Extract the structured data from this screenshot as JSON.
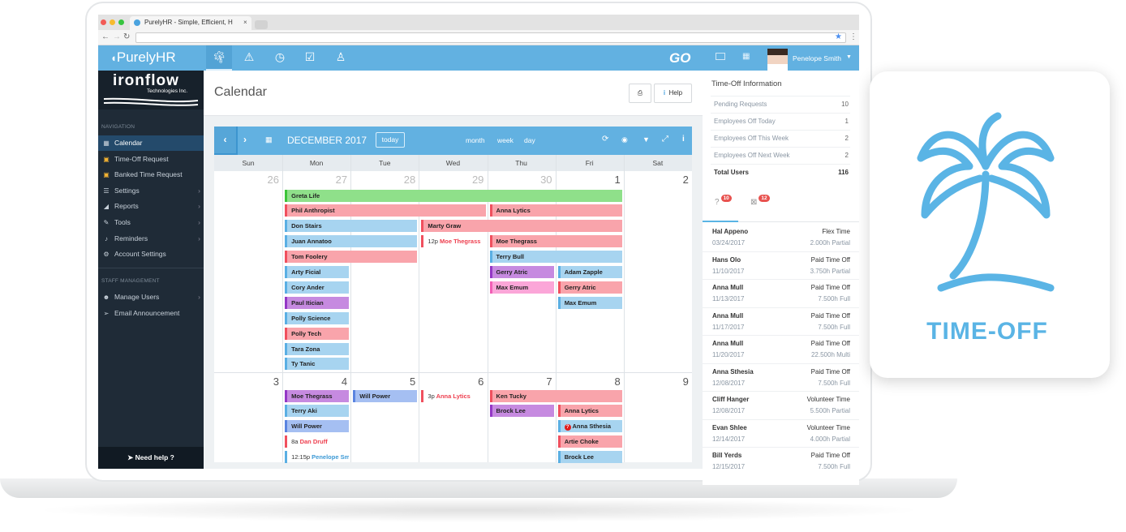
{
  "browser": {
    "tab_title": "PurelyHR - Simple, Efficient, H",
    "tab_close": "×",
    "url": ""
  },
  "app": {
    "brand": "PurelyHR",
    "go_logo": "GO",
    "user_name": "Penelope Smith",
    "colors": {
      "header": "#62b1e1",
      "sidebar": "#1f2b37",
      "accent": "#5ab4e5"
    }
  },
  "header_icons": [
    "palm-tree-icon",
    "warning-icon",
    "clock-icon",
    "clipboard-check-icon",
    "person-badge-icon"
  ],
  "sidebar": {
    "company": "ironflow",
    "company_sub": "Technologies Inc.",
    "nav_label": "NAVIGATION",
    "items": [
      {
        "label": "Calendar",
        "icon": "calendar-icon",
        "active": true
      },
      {
        "label": "Time-Off Request",
        "icon": "calendar-plus-icon"
      },
      {
        "label": "Banked Time Request",
        "icon": "calendar-check-icon"
      },
      {
        "label": "Settings",
        "icon": "sliders-icon",
        "sub": true
      },
      {
        "label": "Reports",
        "icon": "chart-area-icon",
        "sub": true
      },
      {
        "label": "Tools",
        "icon": "wrench-icon",
        "sub": true
      },
      {
        "label": "Reminders",
        "icon": "bell-icon",
        "sub": true
      },
      {
        "label": "Account Settings",
        "icon": "cogs-icon"
      }
    ],
    "staff_label": "STAFF MANAGEMENT",
    "staff_items": [
      {
        "label": "Manage Users",
        "icon": "users-icon",
        "sub": true
      },
      {
        "label": "Email Announcement",
        "icon": "paper-plane-icon"
      }
    ],
    "help": "Need help ?"
  },
  "page": {
    "title": "Calendar",
    "print": "⎙",
    "help": "Help"
  },
  "calendar": {
    "month": "DECEMBER 2017",
    "today": "today",
    "views": [
      "month",
      "week",
      "day"
    ],
    "days": [
      "Sun",
      "Mon",
      "Tue",
      "Wed",
      "Thu",
      "Fri",
      "Sat"
    ],
    "weeks": [
      {
        "dates": [
          "26",
          "27",
          "28",
          "29",
          "30",
          "1",
          "2"
        ],
        "events": [
          {
            "name": "Greta Life",
            "col": 1,
            "span": 5,
            "row": 0,
            "kind": "green"
          },
          {
            "name": "Phil Anthropist",
            "col": 1,
            "span": 3,
            "row": 1,
            "kind": "red"
          },
          {
            "name": "Anna Lytics",
            "col": 4,
            "span": 2,
            "row": 1,
            "kind": "red"
          },
          {
            "name": "Don Stairs",
            "col": 1,
            "span": 2,
            "row": 2,
            "kind": "blue"
          },
          {
            "name": "Marty Graw",
            "col": 3,
            "span": 3,
            "row": 2,
            "kind": "red"
          },
          {
            "name": "Juan Annatoo",
            "col": 1,
            "span": 2,
            "row": 3,
            "kind": "blue"
          },
          {
            "name": "Moe Thegrass",
            "col": 3,
            "span": 1,
            "row": 3,
            "kind": "red",
            "time": "12p"
          },
          {
            "name": "Moe Thegrass",
            "col": 4,
            "span": 2,
            "row": 3,
            "kind": "red"
          },
          {
            "name": "Tom Foolery",
            "col": 1,
            "span": 2,
            "row": 4,
            "kind": "red"
          },
          {
            "name": "Terry Bull",
            "col": 4,
            "span": 2,
            "row": 4,
            "kind": "blue"
          },
          {
            "name": "Arty Ficial",
            "col": 1,
            "span": 1,
            "row": 5,
            "kind": "blue"
          },
          {
            "name": "Gerry Atric",
            "col": 4,
            "span": 1,
            "row": 5,
            "kind": "purple"
          },
          {
            "name": "Adam Zapple",
            "col": 5,
            "span": 1,
            "row": 5,
            "kind": "blue"
          },
          {
            "name": "Cory Ander",
            "col": 1,
            "span": 1,
            "row": 6,
            "kind": "blue"
          },
          {
            "name": "Max Emum",
            "col": 4,
            "span": 1,
            "row": 6,
            "kind": "pink"
          },
          {
            "name": "Gerry Atric",
            "col": 5,
            "span": 1,
            "row": 6,
            "kind": "red"
          },
          {
            "name": "Paul Itician",
            "col": 1,
            "span": 1,
            "row": 7,
            "kind": "purple"
          },
          {
            "name": "Max Emum",
            "col": 5,
            "span": 1,
            "row": 7,
            "kind": "blue"
          },
          {
            "name": "Polly Science",
            "col": 1,
            "span": 1,
            "row": 8,
            "kind": "blue"
          },
          {
            "name": "Polly Tech",
            "col": 1,
            "span": 1,
            "row": 9,
            "kind": "red"
          },
          {
            "name": "Tara Zona",
            "col": 1,
            "span": 1,
            "row": 10,
            "kind": "blue"
          },
          {
            "name": "Ty Tanic",
            "col": 1,
            "span": 1,
            "row": 11,
            "kind": "blue"
          }
        ]
      },
      {
        "dates": [
          "3",
          "4",
          "5",
          "6",
          "7",
          "8",
          "9"
        ],
        "events": [
          {
            "name": "Moe Thegrass",
            "col": 1,
            "span": 1,
            "row": 0,
            "kind": "purple"
          },
          {
            "name": "Will Power",
            "col": 2,
            "span": 1,
            "row": 0,
            "kind": "periwinkle"
          },
          {
            "name": "Anna Lytics",
            "col": 3,
            "span": 1,
            "row": 0,
            "kind": "red",
            "time": "3p"
          },
          {
            "name": "Ken Tucky",
            "col": 4,
            "span": 2,
            "row": 0,
            "kind": "red"
          },
          {
            "name": "Terry Aki",
            "col": 1,
            "span": 1,
            "row": 1,
            "kind": "blue"
          },
          {
            "name": "Brock Lee",
            "col": 4,
            "span": 1,
            "row": 1,
            "kind": "purple"
          },
          {
            "name": "Anna Lytics",
            "col": 5,
            "span": 1,
            "row": 1,
            "kind": "red"
          },
          {
            "name": "Will Power",
            "col": 1,
            "span": 1,
            "row": 2,
            "kind": "periwinkle"
          },
          {
            "name": "Anna Sthesia",
            "col": 5,
            "span": 1,
            "row": 2,
            "kind": "blue",
            "pending": true
          },
          {
            "name": "Dan Druff",
            "col": 1,
            "span": 1,
            "row": 3,
            "kind": "red",
            "time": "8a"
          },
          {
            "name": "Artie Choke",
            "col": 5,
            "span": 1,
            "row": 3,
            "kind": "red"
          },
          {
            "name": "Penelope Smith",
            "col": 1,
            "span": 1,
            "row": 4,
            "kind": "blue",
            "time": "12:15p"
          },
          {
            "name": "Brock Lee",
            "col": 5,
            "span": 1,
            "row": 4,
            "kind": "blue"
          }
        ]
      }
    ],
    "kinds": {
      "blue": [
        "#a7d4f0",
        "#5aafe3",
        "#3d9ad6"
      ],
      "red": [
        "#f9a4ab",
        "#f0505e",
        "#ee3f4f"
      ],
      "green": [
        "#8fe08a",
        "#3cc43a",
        "#2a9a28"
      ],
      "purple": [
        "#c68ae0",
        "#9437c6",
        "#9437c6"
      ],
      "pink": [
        "#fba6d8",
        "#f25fb5",
        "#f25fb5"
      ],
      "periwinkle": [
        "#a5bff2",
        "#5a84e0",
        "#5a84e0"
      ]
    }
  },
  "timeoff": {
    "title": "Time-Off Information",
    "stats": [
      {
        "label": "Pending Requests",
        "value": "10"
      },
      {
        "label": "Employees Off Today",
        "value": "1"
      },
      {
        "label": "Employees Off This Week",
        "value": "2"
      },
      {
        "label": "Employees Off Next Week",
        "value": "2"
      },
      {
        "label": "Total Users",
        "value": "116",
        "bold": true
      }
    ],
    "tabs": [
      {
        "icon": "question-circle-icon",
        "badge": "10"
      },
      {
        "icon": "calendar-x-icon",
        "badge": "12"
      }
    ],
    "list": [
      {
        "name": "Hal Appeno",
        "date": "03/24/2017",
        "type": "Flex Time",
        "hours": "2.000h Partial"
      },
      {
        "name": "Hans Olo",
        "date": "11/10/2017",
        "type": "Paid Time Off",
        "hours": "3.750h Partial"
      },
      {
        "name": "Anna Mull",
        "date": "11/13/2017",
        "type": "Paid Time Off",
        "hours": "7.500h Full"
      },
      {
        "name": "Anna Mull",
        "date": "11/17/2017",
        "type": "Paid Time Off",
        "hours": "7.500h Full"
      },
      {
        "name": "Anna Mull",
        "date": "11/20/2017",
        "type": "Paid Time Off",
        "hours": "22.500h Multi"
      },
      {
        "name": "Anna Sthesia",
        "date": "12/08/2017",
        "type": "Paid Time Off",
        "hours": "7.500h Full"
      },
      {
        "name": "Cliff Hanger",
        "date": "12/08/2017",
        "type": "Volunteer Time",
        "hours": "5.500h Partial"
      },
      {
        "name": "Evan Shlee",
        "date": "12/14/2017",
        "type": "Volunteer Time",
        "hours": "4.000h Partial"
      },
      {
        "name": "Bill Yerds",
        "date": "12/15/2017",
        "type": "Paid Time Off",
        "hours": "7.500h Full"
      }
    ]
  },
  "promo": {
    "label": "TIME-OFF",
    "icon": "palm-tree-icon"
  }
}
